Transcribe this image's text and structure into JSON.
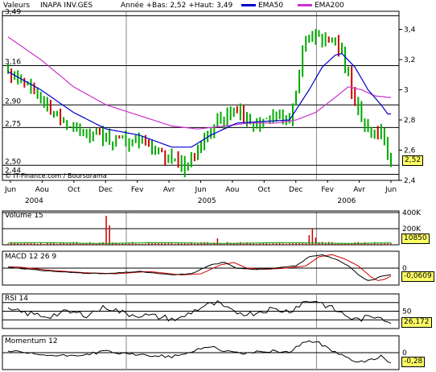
{
  "header": {
    "label": "Valeurs",
    "name": "INAPA INV.GES",
    "range": "Année +Bas: 2,52 +Haut: 3,49",
    "ema50": "EMA50",
    "ema200": "EMA200"
  },
  "colors": {
    "price": "#00aa00",
    "price_down": "#cc0000",
    "ema50": "#0000cc",
    "ema200": "#cc33cc",
    "ref": "#000000",
    "grid": "#bbbbbb",
    "valbox": "#ffff66"
  },
  "credit": "© IT-Finance.com / Boursorama",
  "last_value": "2,52",
  "chart_data": [
    {
      "type": "line",
      "panel": "price",
      "left_ref_labels": [
        "3,49",
        "3,16",
        "2,90",
        "2,75",
        "2,50",
        "2,44"
      ],
      "ref_values": [
        3.49,
        3.16,
        2.9,
        2.75,
        2.5,
        2.44
      ],
      "right_ticks": [
        "3,4",
        "3,2",
        "3",
        "2,8",
        "2,6",
        "2,4"
      ],
      "right_tick_values": [
        3.4,
        3.2,
        3.0,
        2.8,
        2.6,
        2.4
      ],
      "ylim": [
        2.4,
        3.52
      ],
      "x_month_labels": [
        "Jun",
        "Aou",
        "Oct",
        "Dec",
        "Fev",
        "Avr",
        "Jun",
        "Aou",
        "Oct",
        "Dec",
        "Fev",
        "Avr",
        "Jun"
      ],
      "x_year_labels": [
        "2004",
        "2005",
        "2006"
      ],
      "price_anchors": [
        [
          0,
          3.12
        ],
        [
          3,
          3.08
        ],
        [
          5,
          3.05
        ],
        [
          8,
          2.98
        ],
        [
          10,
          2.92
        ],
        [
          13,
          2.85
        ],
        [
          16,
          2.8
        ],
        [
          19,
          2.75
        ],
        [
          22,
          2.7
        ],
        [
          25,
          2.68
        ],
        [
          28,
          2.72
        ],
        [
          31,
          2.65
        ],
        [
          34,
          2.68
        ],
        [
          37,
          2.64
        ],
        [
          40,
          2.66
        ],
        [
          43,
          2.62
        ],
        [
          46,
          2.58
        ],
        [
          49,
          2.55
        ],
        [
          52,
          2.52
        ],
        [
          54,
          2.48
        ],
        [
          56,
          2.55
        ],
        [
          58,
          2.62
        ],
        [
          60,
          2.68
        ],
        [
          62,
          2.72
        ],
        [
          64,
          2.85
        ],
        [
          66,
          2.8
        ],
        [
          68,
          2.86
        ],
        [
          70,
          2.84
        ],
        [
          72,
          2.82
        ],
        [
          74,
          2.8
        ],
        [
          76,
          2.78
        ],
        [
          78,
          2.8
        ],
        [
          80,
          2.82
        ],
        [
          82,
          2.84
        ],
        [
          84,
          2.82
        ],
        [
          86,
          2.82
        ],
        [
          88,
          2.95
        ],
        [
          90,
          3.25
        ],
        [
          92,
          3.35
        ],
        [
          94,
          3.4
        ],
        [
          96,
          3.3
        ],
        [
          98,
          3.35
        ],
        [
          100,
          3.32
        ],
        [
          102,
          3.25
        ],
        [
          104,
          3.1
        ],
        [
          106,
          2.9
        ],
        [
          108,
          2.82
        ],
        [
          110,
          2.72
        ],
        [
          112,
          2.7
        ],
        [
          114,
          2.72
        ],
        [
          116,
          2.6
        ],
        [
          117,
          2.52
        ]
      ],
      "ema50_anchors": [
        [
          0,
          3.12
        ],
        [
          10,
          3.0
        ],
        [
          20,
          2.85
        ],
        [
          30,
          2.74
        ],
        [
          40,
          2.7
        ],
        [
          50,
          2.62
        ],
        [
          56,
          2.62
        ],
        [
          62,
          2.7
        ],
        [
          70,
          2.78
        ],
        [
          78,
          2.79
        ],
        [
          86,
          2.8
        ],
        [
          92,
          3.0
        ],
        [
          96,
          3.15
        ],
        [
          100,
          3.23
        ],
        [
          102,
          3.24
        ],
        [
          106,
          3.15
        ],
        [
          110,
          3.0
        ],
        [
          114,
          2.9
        ],
        [
          116,
          2.84
        ]
      ],
      "ema200_anchors": [
        [
          0,
          3.35
        ],
        [
          10,
          3.2
        ],
        [
          20,
          3.02
        ],
        [
          30,
          2.9
        ],
        [
          40,
          2.83
        ],
        [
          50,
          2.76
        ],
        [
          58,
          2.74
        ],
        [
          66,
          2.76
        ],
        [
          74,
          2.78
        ],
        [
          82,
          2.78
        ],
        [
          88,
          2.8
        ],
        [
          94,
          2.85
        ],
        [
          100,
          2.95
        ],
        [
          104,
          3.02
        ],
        [
          108,
          3.0
        ],
        [
          112,
          2.96
        ],
        [
          116,
          2.95
        ]
      ]
    },
    {
      "type": "bar",
      "panel": "volume",
      "title": "Volume 15",
      "right_ticks": [
        "400K",
        "200K"
      ],
      "right_tick_values": [
        400,
        200
      ],
      "ylim": [
        0,
        420
      ],
      "spikes": [
        [
          30,
          360
        ],
        [
          31,
          240
        ],
        [
          64,
          80
        ],
        [
          92,
          120
        ],
        [
          93,
          200
        ],
        [
          94,
          90
        ]
      ],
      "last_value": "10850"
    },
    {
      "type": "line",
      "panel": "macd",
      "title": "MACD 12 26 9",
      "right_ticks": [
        "0"
      ],
      "right_tick_values": [
        0
      ],
      "ylim": [
        -0.15,
        0.15
      ],
      "anchors": [
        [
          0,
          0.01
        ],
        [
          10,
          -0.02
        ],
        [
          20,
          -0.04
        ],
        [
          30,
          -0.05
        ],
        [
          40,
          -0.03
        ],
        [
          50,
          -0.06
        ],
        [
          56,
          -0.05
        ],
        [
          62,
          0.03
        ],
        [
          66,
          0.05
        ],
        [
          70,
          0.0
        ],
        [
          76,
          -0.01
        ],
        [
          82,
          0.0
        ],
        [
          88,
          0.02
        ],
        [
          92,
          0.1
        ],
        [
          96,
          0.12
        ],
        [
          100,
          0.08
        ],
        [
          104,
          0.02
        ],
        [
          108,
          -0.08
        ],
        [
          110,
          -0.11
        ],
        [
          112,
          -0.1
        ],
        [
          114,
          -0.07
        ],
        [
          116,
          -0.06
        ]
      ],
      "last_value": "-0,0609"
    },
    {
      "type": "line",
      "panel": "rsi",
      "title": "RSI 14",
      "right_ticks": [
        "50"
      ],
      "right_tick_values": [
        50
      ],
      "ylim": [
        10,
        90
      ],
      "anchors": [
        [
          0,
          52
        ],
        [
          6,
          45
        ],
        [
          12,
          38
        ],
        [
          18,
          48
        ],
        [
          24,
          42
        ],
        [
          30,
          60
        ],
        [
          36,
          44
        ],
        [
          42,
          40
        ],
        [
          48,
          35
        ],
        [
          52,
          30
        ],
        [
          56,
          48
        ],
        [
          60,
          62
        ],
        [
          64,
          68
        ],
        [
          68,
          50
        ],
        [
          74,
          44
        ],
        [
          80,
          55
        ],
        [
          86,
          50
        ],
        [
          90,
          70
        ],
        [
          94,
          75
        ],
        [
          98,
          60
        ],
        [
          102,
          45
        ],
        [
          106,
          30
        ],
        [
          110,
          35
        ],
        [
          114,
          40
        ],
        [
          116,
          26
        ]
      ],
      "last_value": "26,172"
    },
    {
      "type": "line",
      "panel": "momentum",
      "title": "Momentum 12",
      "right_ticks": [
        "0"
      ],
      "right_tick_values": [
        0
      ],
      "ylim": [
        -0.5,
        0.5
      ],
      "anchors": [
        [
          0,
          0.05
        ],
        [
          8,
          -0.05
        ],
        [
          16,
          -0.1
        ],
        [
          24,
          -0.05
        ],
        [
          30,
          0.05
        ],
        [
          36,
          -0.05
        ],
        [
          44,
          -0.08
        ],
        [
          50,
          -0.12
        ],
        [
          54,
          -0.05
        ],
        [
          58,
          0.1
        ],
        [
          62,
          0.2
        ],
        [
          66,
          0.05
        ],
        [
          72,
          -0.02
        ],
        [
          80,
          0.05
        ],
        [
          86,
          0.02
        ],
        [
          90,
          0.3
        ],
        [
          94,
          0.35
        ],
        [
          98,
          0.1
        ],
        [
          102,
          -0.05
        ],
        [
          106,
          -0.3
        ],
        [
          110,
          -0.25
        ],
        [
          114,
          -0.1
        ],
        [
          116,
          -0.28
        ]
      ],
      "last_value": "-0,28"
    }
  ]
}
